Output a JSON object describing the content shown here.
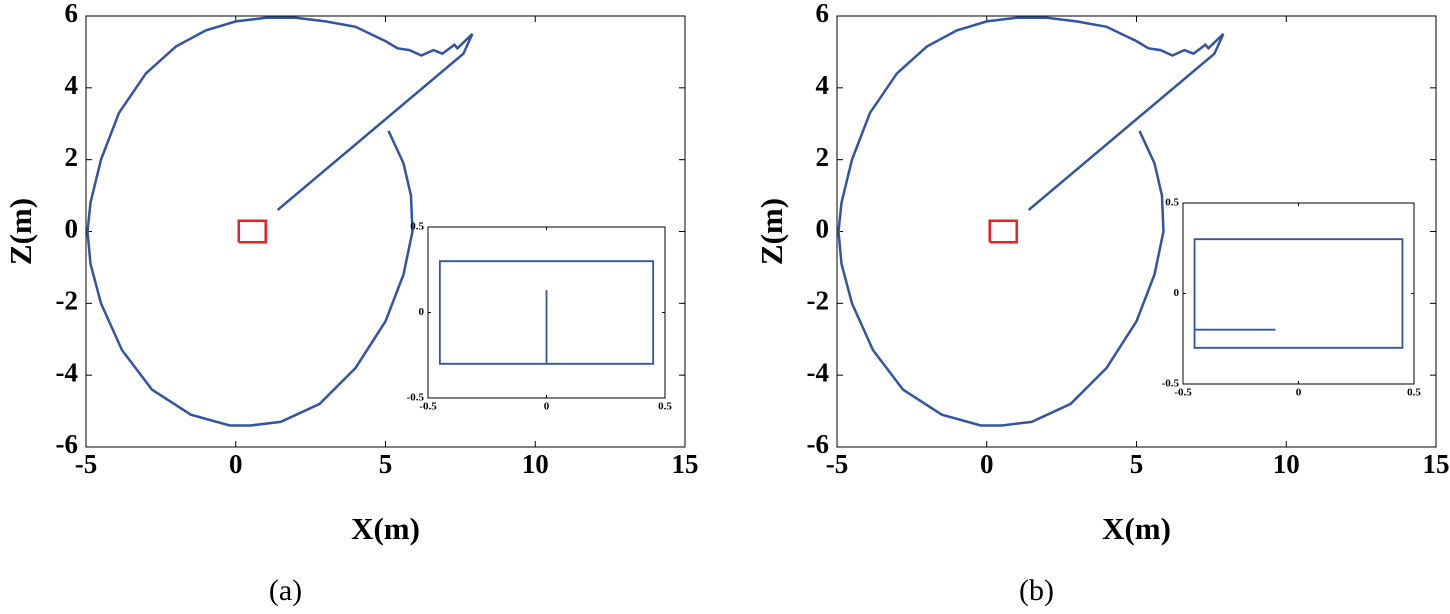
{
  "chart_data": [
    {
      "type": "line",
      "xlabel": "X(m)",
      "ylabel": "Z(m)",
      "caption": "(a)",
      "xlim": [
        -5,
        15
      ],
      "ylim": [
        -6,
        6
      ],
      "xticks": [
        -5,
        0,
        5,
        10,
        15
      ],
      "yticks": [
        -6,
        -4,
        -2,
        0,
        2,
        4,
        6
      ],
      "series": [
        {
          "color": "#3353a3",
          "x": [
            1.4,
            7.6,
            7.9,
            7.4,
            7.3,
            6.9,
            6.6,
            6.2,
            5.8,
            5.4,
            5.0,
            4.5,
            4.0,
            3.0,
            2.0,
            1.0,
            0,
            -1,
            -2,
            -3,
            -3.9,
            -4.5,
            -4.85,
            -4.95,
            -4.85,
            -4.5,
            -3.8,
            -2.8,
            -1.5,
            -0.2,
            0.5,
            1.5,
            2.8,
            4.0,
            5.0,
            5.6,
            5.9,
            5.85,
            5.6,
            5.1
          ],
          "y": [
            0.6,
            4.95,
            5.5,
            5.1,
            5.2,
            4.95,
            5.05,
            4.9,
            5.05,
            5.1,
            5.3,
            5.5,
            5.7,
            5.85,
            5.95,
            5.95,
            5.85,
            5.6,
            5.15,
            4.4,
            3.3,
            2.0,
            0.8,
            0,
            -0.9,
            -2.0,
            -3.3,
            -4.4,
            -5.1,
            -5.4,
            -5.4,
            -5.3,
            -4.8,
            -3.8,
            -2.5,
            -1.2,
            0,
            1.0,
            1.9,
            2.8
          ]
        },
        {
          "color": "#e8202a",
          "x": [
            0.1,
            1.0,
            1.0,
            0.1,
            0.1
          ],
          "y": [
            -0.3,
            -0.3,
            0.3,
            0.3,
            -0.3
          ]
        }
      ],
      "inset": {
        "type": "line",
        "xlim": [
          -0.5,
          0.5
        ],
        "ylim": [
          -0.5,
          0.5
        ],
        "xticks": [
          -0.5,
          0,
          0.5
        ],
        "yticks": [
          -0.5,
          0,
          0.5
        ],
        "series": [
          {
            "color": "#3353a3",
            "x": [
              0,
              0,
              0.45,
              0.45,
              -0.45,
              -0.45,
              0
            ],
            "y": [
              0.13,
              -0.3,
              -0.3,
              0.3,
              0.3,
              -0.3,
              -0.3
            ]
          }
        ]
      }
    },
    {
      "type": "line",
      "xlabel": "X(m)",
      "ylabel": "Z(m)",
      "caption": "(b)",
      "xlim": [
        -5,
        15
      ],
      "ylim": [
        -6,
        6
      ],
      "xticks": [
        -5,
        0,
        5,
        10,
        15
      ],
      "yticks": [
        -6,
        -4,
        -2,
        0,
        2,
        4,
        6
      ],
      "series": [
        {
          "color": "#3353a3",
          "x": [
            1.4,
            7.6,
            7.9,
            7.4,
            7.3,
            6.9,
            6.6,
            6.2,
            5.8,
            5.4,
            5.0,
            4.5,
            4.0,
            3.0,
            2.0,
            1.0,
            0,
            -1,
            -2,
            -3,
            -3.9,
            -4.5,
            -4.85,
            -4.95,
            -4.85,
            -4.5,
            -3.8,
            -2.8,
            -1.5,
            -0.2,
            0.5,
            1.5,
            2.8,
            4.0,
            5.0,
            5.6,
            5.9,
            5.85,
            5.6,
            5.1
          ],
          "y": [
            0.6,
            4.95,
            5.5,
            5.1,
            5.2,
            4.95,
            5.05,
            4.9,
            5.05,
            5.1,
            5.3,
            5.5,
            5.7,
            5.85,
            5.95,
            5.95,
            5.85,
            5.6,
            5.15,
            4.4,
            3.3,
            2.0,
            0.8,
            0,
            -0.9,
            -2.0,
            -3.3,
            -4.4,
            -5.1,
            -5.4,
            -5.4,
            -5.3,
            -4.8,
            -3.8,
            -2.5,
            -1.2,
            0,
            1.0,
            1.9,
            2.8
          ]
        },
        {
          "color": "#e8202a",
          "x": [
            0.1,
            1.0,
            1.0,
            0.1,
            0.1
          ],
          "y": [
            -0.3,
            -0.3,
            0.3,
            0.3,
            -0.3
          ]
        }
      ],
      "inset": {
        "type": "line",
        "xlim": [
          -0.5,
          0.5
        ],
        "ylim": [
          -0.5,
          0.5
        ],
        "xticks": [
          -0.5,
          0,
          0.5
        ],
        "yticks": [
          -0.5,
          0,
          0.5
        ],
        "series": [
          {
            "color": "#3353a3",
            "x": [
              -0.1,
              -0.45,
              -0.45,
              0.45,
              0.45,
              -0.45,
              -0.45
            ],
            "y": [
              -0.2,
              -0.2,
              -0.3,
              -0.3,
              0.3,
              0.3,
              -0.2
            ]
          }
        ]
      }
    }
  ]
}
